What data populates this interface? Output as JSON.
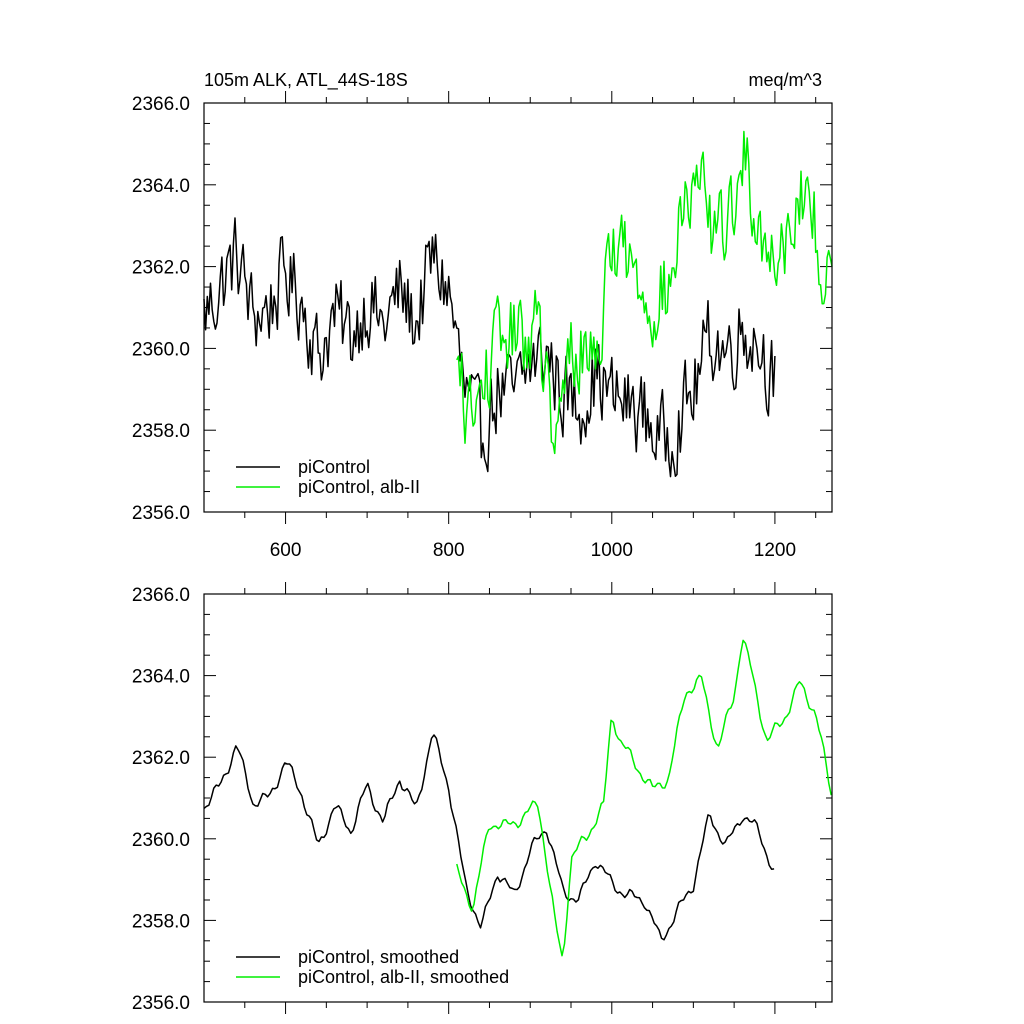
{
  "chart_data": [
    {
      "type": "line",
      "title_left": "105m ALK, ATL_44S-18S",
      "title_right": "meq/m^3",
      "xlim": [
        500,
        1270
      ],
      "ylim": [
        2356,
        2366
      ],
      "x_ticks": [
        600,
        800,
        1000,
        1200
      ],
      "x_tick_labels": [
        "600",
        "800",
        "1000",
        "1200"
      ],
      "y_ticks": [
        2356,
        2358,
        2360,
        2362,
        2364,
        2366
      ],
      "y_tick_labels": [
        "2356.0",
        "2358.0",
        "2360.0",
        "2362.0",
        "2364.0",
        "2366.0"
      ],
      "legend_position": "bottom-left",
      "series": [
        {
          "name": "piControl",
          "color": "#000000",
          "noisy": true,
          "x": [
            500,
            520,
            540,
            560,
            580,
            600,
            620,
            640,
            660,
            680,
            700,
            720,
            740,
            760,
            780,
            800,
            820,
            840,
            860,
            880,
            900,
            920,
            940,
            960,
            980,
            1000,
            1020,
            1040,
            1060,
            1080,
            1100,
            1120,
            1140,
            1160,
            1180,
            1200
          ],
          "y": [
            2360.8,
            2361.5,
            2362.3,
            2360.8,
            2361.0,
            2361.8,
            2361.2,
            2359.8,
            2360.8,
            2360.3,
            2361.2,
            2360.5,
            2361.4,
            2360.6,
            2362.2,
            2361.4,
            2358.9,
            2357.8,
            2359.0,
            2358.8,
            2359.6,
            2359.9,
            2358.9,
            2358.6,
            2359.4,
            2358.8,
            2358.6,
            2358.4,
            2357.7,
            2358.2,
            2358.9,
            2360.3,
            2359.9,
            2360.5,
            2360.2,
            2359.2
          ]
        },
        {
          "name": "piControl, alb-II",
          "color": "#00ee00",
          "noisy": true,
          "x": [
            810,
            830,
            850,
            870,
            890,
            910,
            930,
            950,
            970,
            990,
            1000,
            1010,
            1030,
            1050,
            1070,
            1090,
            1110,
            1130,
            1150,
            1160,
            1170,
            1190,
            1210,
            1230,
            1250,
            1270
          ],
          "y": [
            2359.3,
            2358.2,
            2359.6,
            2360.4,
            2360.2,
            2360.6,
            2357.3,
            2360.0,
            2359.8,
            2360.7,
            2362.8,
            2362.6,
            2361.7,
            2361.2,
            2361.4,
            2363.5,
            2363.8,
            2362.6,
            2363.6,
            2364.8,
            2364.0,
            2362.3,
            2362.7,
            2363.8,
            2363.0,
            2360.9
          ]
        }
      ]
    },
    {
      "type": "line",
      "xlim": [
        500,
        1270
      ],
      "ylim": [
        2356,
        2366
      ],
      "x_ticks": [
        600,
        800,
        1000,
        1200
      ],
      "y_ticks": [
        2356,
        2358,
        2360,
        2362,
        2364,
        2366
      ],
      "y_tick_labels": [
        "2356.0",
        "2358.0",
        "2360.0",
        "2362.0",
        "2364.0",
        "2366.0"
      ],
      "legend_position": "bottom-left",
      "series": [
        {
          "name": "piControl, smoothed",
          "color": "#000000",
          "noisy": false,
          "x": [
            500,
            520,
            540,
            560,
            580,
            600,
            620,
            640,
            660,
            680,
            700,
            720,
            740,
            760,
            780,
            800,
            820,
            840,
            860,
            880,
            900,
            920,
            940,
            960,
            980,
            1000,
            1020,
            1040,
            1060,
            1080,
            1100,
            1120,
            1140,
            1160,
            1180,
            1200
          ],
          "y": [
            2360.8,
            2361.3,
            2362.3,
            2360.9,
            2361.0,
            2361.9,
            2361.1,
            2359.8,
            2360.8,
            2360.2,
            2361.3,
            2360.4,
            2361.5,
            2360.7,
            2362.6,
            2361.3,
            2358.9,
            2357.8,
            2359.2,
            2358.6,
            2359.7,
            2360.3,
            2358.7,
            2358.5,
            2359.5,
            2358.9,
            2358.6,
            2358.5,
            2357.5,
            2358.2,
            2358.9,
            2360.6,
            2359.8,
            2360.6,
            2360.2,
            2359.1
          ]
        },
        {
          "name": "piControl, alb-II, smoothed",
          "color": "#00ee00",
          "noisy": false,
          "x": [
            810,
            830,
            850,
            870,
            890,
            910,
            930,
            940,
            950,
            970,
            990,
            1000,
            1010,
            1030,
            1050,
            1070,
            1090,
            1110,
            1130,
            1150,
            1160,
            1170,
            1190,
            1210,
            1230,
            1250,
            1270
          ],
          "y": [
            2359.2,
            2358.3,
            2360.4,
            2360.3,
            2360.5,
            2360.9,
            2358.0,
            2357.0,
            2359.5,
            2360.1,
            2360.8,
            2363.1,
            2362.4,
            2361.8,
            2361.2,
            2361.5,
            2363.6,
            2363.9,
            2362.2,
            2363.5,
            2365.0,
            2364.2,
            2362.4,
            2362.9,
            2363.8,
            2363.1,
            2361.0
          ]
        }
      ]
    }
  ]
}
